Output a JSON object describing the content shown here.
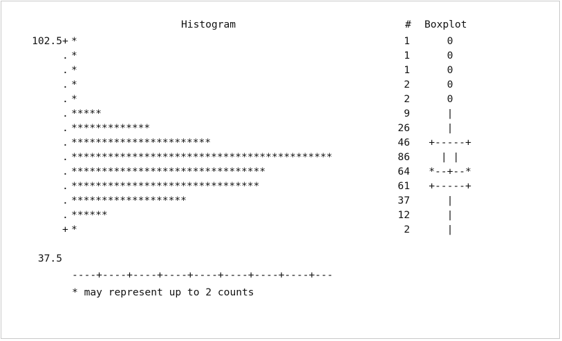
{
  "chart_data": {
    "type": "bar",
    "orientation": "horizontal",
    "title": "Histogram",
    "count_header": "#",
    "boxplot_header": "Boxplot",
    "y_tick_labels": {
      "top": "102.5",
      "bottom": "37.5"
    },
    "ylim": [
      37.5,
      102.5
    ],
    "bin_width": 5,
    "bins": [
      102.5,
      97.5,
      92.5,
      87.5,
      82.5,
      77.5,
      72.5,
      67.5,
      62.5,
      57.5,
      52.5,
      47.5,
      42.5,
      37.5
    ],
    "counts": [
      1,
      1,
      1,
      2,
      2,
      9,
      26,
      46,
      86,
      64,
      61,
      37,
      12,
      2
    ],
    "stars": [
      1,
      1,
      1,
      1,
      1,
      5,
      13,
      23,
      43,
      32,
      31,
      19,
      6,
      1
    ],
    "axis_line": "----+----+----+----+----+----+----+----+---",
    "footnote": "* may represent up to 2 counts",
    "boxplot": [
      "0",
      "0",
      "0",
      "0",
      "0",
      "|",
      "|",
      "+-----+",
      "|     |",
      "*--+--*",
      "+-----+",
      "|",
      "|",
      "|"
    ]
  },
  "colors": {
    "text": "#111111",
    "border": "#c8c8c8",
    "background": "#ffffff"
  }
}
